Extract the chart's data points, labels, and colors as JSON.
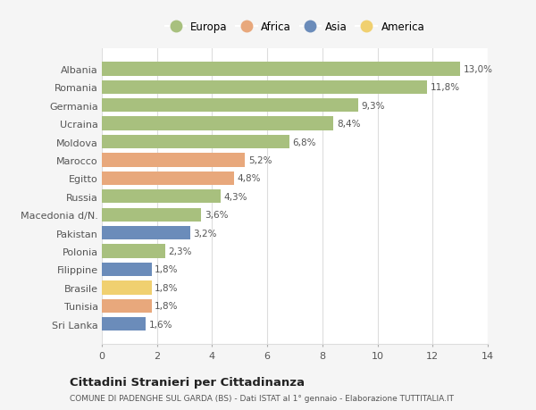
{
  "categories": [
    "Albania",
    "Romania",
    "Germania",
    "Ucraina",
    "Moldova",
    "Marocco",
    "Egitto",
    "Russia",
    "Macedonia d/N.",
    "Pakistan",
    "Polonia",
    "Filippine",
    "Brasile",
    "Tunisia",
    "Sri Lanka"
  ],
  "values": [
    13.0,
    11.8,
    9.3,
    8.4,
    6.8,
    5.2,
    4.8,
    4.3,
    3.6,
    3.2,
    2.3,
    1.8,
    1.8,
    1.8,
    1.6
  ],
  "labels": [
    "13,0%",
    "11,8%",
    "9,3%",
    "8,4%",
    "6,8%",
    "5,2%",
    "4,8%",
    "4,3%",
    "3,6%",
    "3,2%",
    "2,3%",
    "1,8%",
    "1,8%",
    "1,8%",
    "1,6%"
  ],
  "colors": [
    "#a8c07e",
    "#a8c07e",
    "#a8c07e",
    "#a8c07e",
    "#a8c07e",
    "#e8a87c",
    "#e8a87c",
    "#a8c07e",
    "#a8c07e",
    "#6b8cba",
    "#a8c07e",
    "#6b8cba",
    "#f0d070",
    "#e8a87c",
    "#6b8cba"
  ],
  "legend_labels": [
    "Europa",
    "Africa",
    "Asia",
    "America"
  ],
  "legend_colors": [
    "#a8c07e",
    "#e8a87c",
    "#6b8cba",
    "#f0d070"
  ],
  "xlim": [
    0,
    14
  ],
  "xticks": [
    0,
    2,
    4,
    6,
    8,
    10,
    12,
    14
  ],
  "title": "Cittadini Stranieri per Cittadinanza",
  "subtitle": "COMUNE DI PADENGHE SUL GARDA (BS) - Dati ISTAT al 1° gennaio - Elaborazione TUTTITALIA.IT",
  "background_color": "#f5f5f5",
  "plot_bg_color": "#ffffff",
  "grid_color": "#dddddd",
  "bar_height": 0.75
}
